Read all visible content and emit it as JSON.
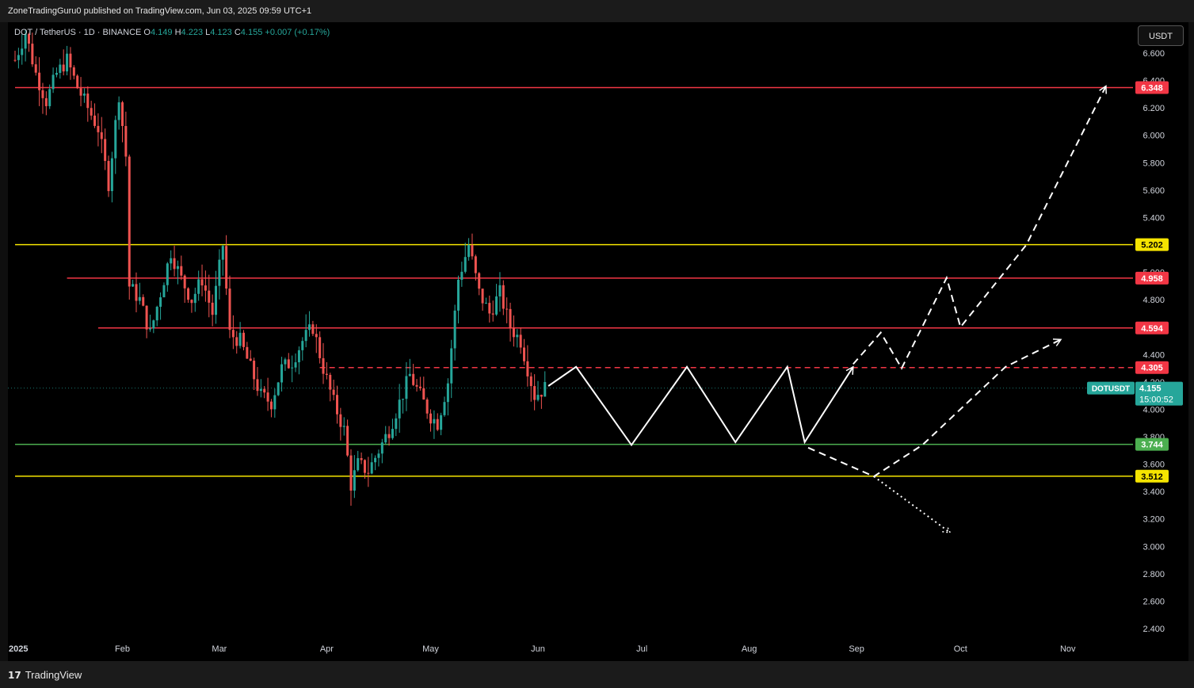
{
  "header": {
    "published_by": "ZoneTradingGuru0 published on TradingView.com, Jun 03, 2025 09:59 UTC+1"
  },
  "legend": {
    "symbol": "DOT / TetherUS · 1D · BINANCE",
    "o_label": "O",
    "o_value": "4.149",
    "h_label": "H",
    "h_value": "4.223",
    "l_label": "L",
    "l_value": "4.123",
    "c_label": "C",
    "c_value": "4.155",
    "change": "+0.007 (+0.17%)"
  },
  "currency_button": "USDT",
  "footer": {
    "brand": "TradingView",
    "logo_glyph": "17"
  },
  "colors": {
    "background": "#000000",
    "up": "#26a69a",
    "down": "#ef5350",
    "red_level": "#f23645",
    "yellow_level": "#f5e400",
    "green_level": "#4caf50",
    "drawing": "#ffffff"
  },
  "chart_data": {
    "type": "candlestick",
    "symbol": "DOTUSDT",
    "ylim": [
      2.3,
      6.8
    ],
    "y_ticks": [
      "2.400",
      "2.600",
      "2.800",
      "3.000",
      "3.200",
      "3.400",
      "3.600",
      "3.800",
      "4.000",
      "4.200",
      "4.400",
      "4.600",
      "4.800",
      "5.000",
      "5.200",
      "5.400",
      "5.600",
      "5.800",
      "6.000",
      "6.200",
      "6.400",
      "6.600"
    ],
    "x_labels": [
      {
        "label": "2025",
        "date": "2025-01-01"
      },
      {
        "label": "Feb",
        "date": "2025-02-01"
      },
      {
        "label": "Mar",
        "date": "2025-03-01"
      },
      {
        "label": "Apr",
        "date": "2025-04-01"
      },
      {
        "label": "May",
        "date": "2025-05-01"
      },
      {
        "label": "Jun",
        "date": "2025-06-01"
      },
      {
        "label": "Jul",
        "date": "2025-07-01"
      },
      {
        "label": "Aug",
        "date": "2025-08-01"
      },
      {
        "label": "Sep",
        "date": "2025-09-01"
      },
      {
        "label": "Oct",
        "date": "2025-10-01"
      },
      {
        "label": "Nov",
        "date": "2025-11-01"
      }
    ],
    "last_price": "4.155",
    "last_symbol": "DOTUSDT",
    "countdown": "15:00:52",
    "price_path": [
      [
        "2025-01-01",
        6.55
      ],
      [
        "2025-01-04",
        6.75
      ],
      [
        "2025-01-07",
        6.45
      ],
      [
        "2025-01-10",
        6.25
      ],
      [
        "2025-01-13",
        6.45
      ],
      [
        "2025-01-16",
        6.55
      ],
      [
        "2025-01-19",
        6.35
      ],
      [
        "2025-01-22",
        6.2
      ],
      [
        "2025-01-25",
        6.05
      ],
      [
        "2025-01-28",
        5.65
      ],
      [
        "2025-01-31",
        6.3
      ],
      [
        "2025-02-02",
        5.85
      ],
      [
        "2025-02-03",
        4.9
      ],
      [
        "2025-02-06",
        4.8
      ],
      [
        "2025-02-09",
        4.55
      ],
      [
        "2025-02-12",
        4.85
      ],
      [
        "2025-02-15",
        5.15
      ],
      [
        "2025-02-18",
        4.95
      ],
      [
        "2025-02-21",
        4.8
      ],
      [
        "2025-02-24",
        4.95
      ],
      [
        "2025-02-27",
        4.7
      ],
      [
        "2025-03-02",
        5.2
      ],
      [
        "2025-03-04",
        4.55
      ],
      [
        "2025-03-07",
        4.5
      ],
      [
        "2025-03-10",
        4.3
      ],
      [
        "2025-03-13",
        4.1
      ],
      [
        "2025-03-16",
        4.05
      ],
      [
        "2025-03-19",
        4.3
      ],
      [
        "2025-03-22",
        4.35
      ],
      [
        "2025-03-25",
        4.5
      ],
      [
        "2025-03-28",
        4.6
      ],
      [
        "2025-03-31",
        4.3
      ],
      [
        "2025-04-03",
        4.05
      ],
      [
        "2025-04-06",
        3.85
      ],
      [
        "2025-04-08",
        3.45
      ],
      [
        "2025-04-10",
        3.6
      ],
      [
        "2025-04-13",
        3.55
      ],
      [
        "2025-04-16",
        3.7
      ],
      [
        "2025-04-19",
        3.85
      ],
      [
        "2025-04-22",
        4.05
      ],
      [
        "2025-04-25",
        4.25
      ],
      [
        "2025-04-28",
        4.1
      ],
      [
        "2025-05-01",
        3.95
      ],
      [
        "2025-05-03",
        3.9
      ],
      [
        "2025-05-06",
        4.2
      ],
      [
        "2025-05-09",
        4.95
      ],
      [
        "2025-05-12",
        5.2
      ],
      [
        "2025-05-15",
        4.85
      ],
      [
        "2025-05-18",
        4.7
      ],
      [
        "2025-05-21",
        4.85
      ],
      [
        "2025-05-24",
        4.6
      ],
      [
        "2025-05-27",
        4.5
      ],
      [
        "2025-05-29",
        4.3
      ],
      [
        "2025-05-31",
        4.1
      ],
      [
        "2025-06-03",
        4.155
      ]
    ],
    "horizontal_levels": [
      {
        "label": "6.348",
        "value": 6.348,
        "color": "#f23645",
        "style": "solid",
        "start": "2025-01-01"
      },
      {
        "label": "5.202",
        "value": 5.202,
        "color": "#f5e400",
        "style": "solid",
        "start": "2025-01-01"
      },
      {
        "label": "4.958",
        "value": 4.958,
        "color": "#f23645",
        "style": "solid",
        "start": "2025-01-16"
      },
      {
        "label": "4.594",
        "value": 4.594,
        "color": "#f23645",
        "style": "solid",
        "start": "2025-01-25"
      },
      {
        "label": "4.305",
        "value": 4.305,
        "color": "#f23645",
        "style": "dashed",
        "start": "2025-03-30"
      },
      {
        "label": "3.744",
        "value": 3.744,
        "color": "#4caf50",
        "style": "solid",
        "start": "2025-01-01"
      },
      {
        "label": "3.512",
        "value": 3.512,
        "color": "#f5e400",
        "style": "solid",
        "start": "2025-01-01"
      }
    ],
    "drawings": [
      {
        "style": "solid",
        "points": [
          [
            "2025-06-04",
            4.17
          ],
          [
            "2025-06-12",
            4.31
          ],
          [
            "2025-06-28",
            3.74
          ],
          [
            "2025-07-14",
            4.31
          ],
          [
            "2025-07-28",
            3.76
          ],
          [
            "2025-08-12",
            4.31
          ],
          [
            "2025-08-17",
            3.76
          ],
          [
            "2025-08-31",
            4.31
          ]
        ]
      },
      {
        "style": "dashed",
        "points": [
          [
            "2025-08-31",
            4.33
          ],
          [
            "2025-09-08",
            4.56
          ],
          [
            "2025-09-14",
            4.3
          ],
          [
            "2025-09-27",
            4.96
          ],
          [
            "2025-10-01",
            4.6
          ],
          [
            "2025-10-20",
            5.2
          ],
          [
            "2025-11-12",
            6.36
          ]
        ]
      },
      {
        "style": "dashed",
        "points": [
          [
            "2025-08-18",
            3.72
          ],
          [
            "2025-09-06",
            3.51
          ],
          [
            "2025-09-20",
            3.74
          ],
          [
            "2025-10-14",
            4.31
          ],
          [
            "2025-10-30",
            4.51
          ]
        ]
      },
      {
        "style": "dotted",
        "points": [
          [
            "2025-09-06",
            3.51
          ],
          [
            "2025-09-28",
            3.1
          ]
        ]
      }
    ]
  }
}
